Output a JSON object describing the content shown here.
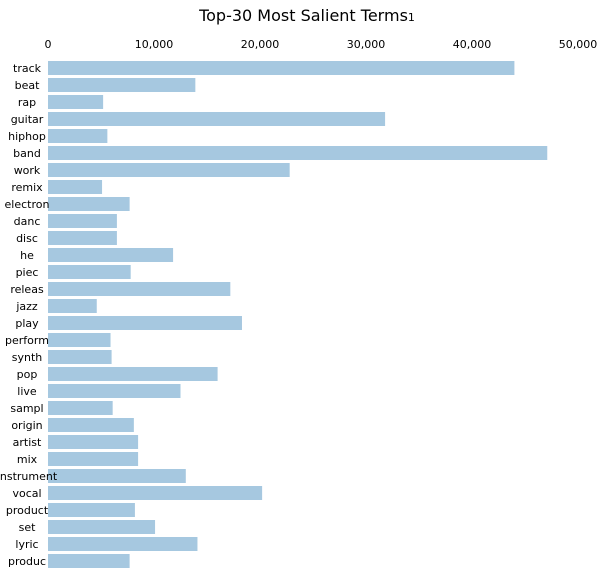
{
  "chart_data": {
    "type": "bar",
    "orientation": "horizontal",
    "title": "Top-30 Most Salient Terms",
    "title_superscript": "1",
    "xlabel": "",
    "ylabel": "",
    "xlim": [
      0,
      50000
    ],
    "x_ticks": [
      0,
      10000,
      20000,
      30000,
      40000,
      50000
    ],
    "x_tick_labels": [
      "0",
      "10,000",
      "20,000",
      "30,000",
      "40,000",
      "50,000"
    ],
    "x_axis_position": "top",
    "grid": false,
    "legend": "none",
    "bar_color": "#a6c8e0",
    "categories": [
      "track",
      "beat",
      "rap",
      "guitar",
      "hiphop",
      "band",
      "work",
      "remix",
      "electron",
      "danc",
      "disc",
      "he",
      "piec",
      "releas",
      "jazz",
      "play",
      "perform",
      "synth",
      "pop",
      "live",
      "sampl",
      "origin",
      "artist",
      "mix",
      "instrument",
      "vocal",
      "product",
      "set",
      "lyric",
      "produc"
    ],
    "values": [
      44000,
      13900,
      5200,
      31800,
      5600,
      47100,
      22800,
      5100,
      7700,
      6500,
      6500,
      11800,
      7800,
      17200,
      4600,
      18300,
      5900,
      6000,
      16000,
      12500,
      6100,
      8100,
      8500,
      8500,
      13000,
      20200,
      8200,
      10100,
      14100,
      7700
    ]
  }
}
